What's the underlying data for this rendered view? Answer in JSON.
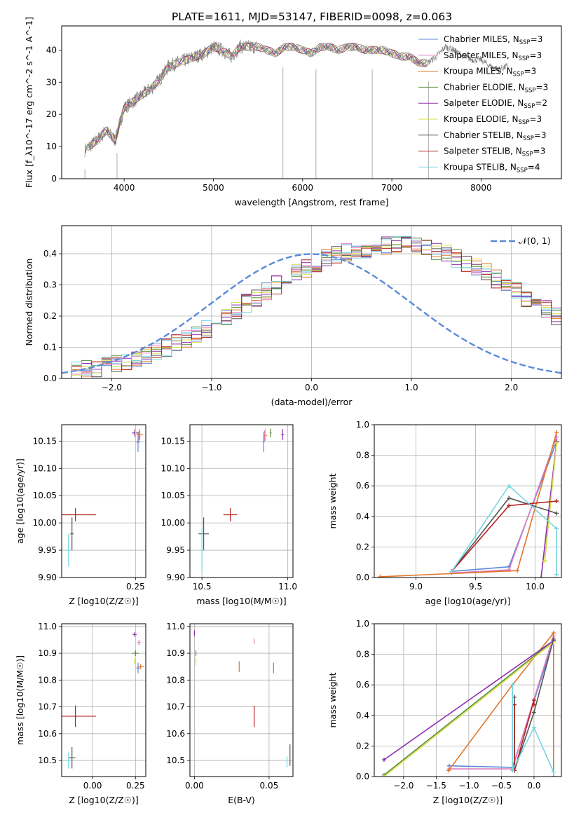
{
  "title": "PLATE=1611, MJD=53147, FIBERID=0098, z=0.063",
  "colors": {
    "Chabrier MILES": "#5b8ad8",
    "Salpeter MILES": "#e07bc0",
    "Kroupa MILES": "#e0762a",
    "Chabrier ELODIE": "#5a8a3a",
    "Salpeter ELODIE": "#8e2fb0",
    "Kroupa ELODIE": "#d9e04a",
    "Chabrier STELIB": "#555555",
    "Salpeter STELIB": "#b51f1f",
    "Kroupa STELIB": "#78d4e0",
    "data": "#808080",
    "normal": "#5b8ad8"
  },
  "chart_data": [
    {
      "type": "line",
      "id": "spectrum",
      "xlabel": "wavelength [Angstrom, rest frame]",
      "ylabel": "Flux [f_λ10^-17 erg cm^-2 s^-1 A^-1]",
      "xlim": [
        3300,
        8900
      ],
      "ylim": [
        0,
        47.5
      ],
      "xticks": [
        4000,
        5000,
        6000,
        7000,
        8000
      ],
      "yticks": [
        0,
        10,
        20,
        30,
        40
      ],
      "grid": false,
      "legend_position": "upper right",
      "legend": [
        {
          "name": "Chabrier MILES",
          "nssp": "3"
        },
        {
          "name": "Salpeter MILES",
          "nssp": "3"
        },
        {
          "name": "Kroupa MILES",
          "nssp": "3"
        },
        {
          "name": "Chabrier ELODIE",
          "nssp": "3"
        },
        {
          "name": "Salpeter ELODIE",
          "nssp": "2"
        },
        {
          "name": "Kroupa ELODIE",
          "nssp": "3"
        },
        {
          "name": "Chabrier STELIB",
          "nssp": "3"
        },
        {
          "name": "Salpeter STELIB",
          "nssp": "3"
        },
        {
          "name": "Kroupa STELIB",
          "nssp": "4"
        }
      ],
      "x": [
        3560,
        3700,
        3800,
        3900,
        4000,
        4100,
        4200,
        4300,
        4400,
        4500,
        4600,
        4700,
        4800,
        4900,
        5000,
        5100,
        5200,
        5300,
        5400,
        5500,
        5600,
        5700,
        5800,
        5900,
        6000,
        6100,
        6200,
        6300,
        6400,
        6500,
        6600,
        6700,
        6800,
        6900,
        7000,
        7100,
        7200,
        7300,
        7400,
        7500,
        7600,
        7700,
        7800,
        7900,
        8000,
        8100,
        8200,
        8300
      ],
      "y": [
        9,
        12,
        15,
        12,
        22,
        24,
        26,
        28,
        31,
        35,
        36,
        37,
        38,
        39,
        41,
        40,
        38,
        41,
        41,
        41,
        40,
        39,
        41,
        41,
        40,
        39,
        41,
        41,
        40,
        41,
        41,
        40,
        40,
        40,
        39,
        38,
        38,
        36,
        36,
        38,
        41,
        40,
        38,
        37,
        37,
        35,
        34,
        35
      ]
    },
    {
      "type": "line",
      "id": "residual-histogram",
      "xlabel": "(data-model)/error",
      "ylabel": "Normed distribution",
      "xlim": [
        -2.5,
        2.5
      ],
      "ylim": [
        0,
        0.49
      ],
      "xticks": [
        -2,
        -1,
        0,
        1,
        2
      ],
      "yticks": [
        0.0,
        0.1,
        0.2,
        0.3,
        0.4
      ],
      "grid": true,
      "legend_position": "upper right",
      "normal_label": "𝒩(0, 1)",
      "bin_width": 0.1,
      "hist_base": [
        0.02,
        0.025,
        0.03,
        0.035,
        0.04,
        0.045,
        0.055,
        0.065,
        0.075,
        0.085,
        0.1,
        0.115,
        0.13,
        0.145,
        0.16,
        0.18,
        0.2,
        0.22,
        0.24,
        0.26,
        0.28,
        0.3,
        0.32,
        0.34,
        0.355,
        0.37,
        0.385,
        0.395,
        0.405,
        0.41,
        0.415,
        0.42,
        0.425,
        0.43,
        0.43,
        0.425,
        0.42,
        0.41,
        0.4,
        0.385,
        0.37,
        0.355,
        0.34,
        0.32,
        0.3,
        0.28,
        0.26,
        0.24,
        0.22,
        0.2
      ]
    },
    {
      "type": "scatter",
      "id": "age-vs-Z",
      "xlabel": "Z [log10(Z/Z☉)]",
      "ylabel": "age [log10(age/yr)]",
      "xlim": [
        -0.18,
        0.31
      ],
      "ylim": [
        9.9,
        10.18
      ],
      "xticks": [
        0.25
      ],
      "yticks": [
        9.9,
        9.95,
        10.0,
        10.05,
        10.1,
        10.15
      ],
      "grid": true,
      "points": [
        {
          "name": "Chabrier MILES",
          "x": 0.265,
          "y": 10.148,
          "xerr": 0.01,
          "yerr": 0.018
        },
        {
          "name": "Salpeter MILES",
          "x": 0.27,
          "y": 10.158,
          "xerr": 0.01,
          "yerr": 0.01
        },
        {
          "name": "Kroupa MILES",
          "x": 0.275,
          "y": 10.162,
          "xerr": 0.02,
          "yerr": 0.01
        },
        {
          "name": "Chabrier ELODIE",
          "x": 0.25,
          "y": 10.165,
          "xerr": 0.02,
          "yerr": 0.008
        },
        {
          "name": "Salpeter ELODIE",
          "x": 0.245,
          "y": 10.165,
          "xerr": 0.012,
          "yerr": 0.006
        },
        {
          "name": "Kroupa ELODIE",
          "x": 0.25,
          "y": 10.168,
          "xerr": 0.005,
          "yerr": 0.01
        },
        {
          "name": "Chabrier STELIB",
          "x": -0.12,
          "y": 9.98,
          "xerr": 0.01,
          "yerr": 0.03
        },
        {
          "name": "Salpeter STELIB",
          "x": -0.1,
          "y": 10.015,
          "xerr": 0.12,
          "yerr": 0.012
        },
        {
          "name": "Kroupa STELIB",
          "x": -0.14,
          "y": 9.95,
          "xerr": 0.02,
          "yerr": 0.03
        }
      ]
    },
    {
      "type": "scatter",
      "id": "age-vs-mass",
      "xlabel": "mass [log10(M/M☉)]",
      "ylabel": "",
      "xlim": [
        10.43,
        11.03
      ],
      "ylim": [
        9.9,
        10.18
      ],
      "xticks": [
        10.5,
        11.0
      ],
      "yticks": [
        9.9,
        9.95,
        10.0,
        10.05,
        10.1,
        10.15
      ],
      "grid": true,
      "points": [
        {
          "name": "Chabrier MILES",
          "x": 10.86,
          "y": 10.148,
          "xerr": 0.005,
          "yerr": 0.018
        },
        {
          "name": "Salpeter MILES",
          "x": 10.865,
          "y": 10.16,
          "xerr": 0.005,
          "yerr": 0.01
        },
        {
          "name": "Kroupa MILES",
          "x": 10.87,
          "y": 10.16,
          "xerr": 0.01,
          "yerr": 0.01
        },
        {
          "name": "Chabrier ELODIE",
          "x": 10.9,
          "y": 10.165,
          "xerr": 0.005,
          "yerr": 0.008
        },
        {
          "name": "Salpeter ELODIE",
          "x": 10.97,
          "y": 10.162,
          "xerr": 0.008,
          "yerr": 0.01
        },
        {
          "name": "Kroupa ELODIE",
          "x": 10.87,
          "y": 10.162,
          "xerr": 0.005,
          "yerr": 0.012
        },
        {
          "name": "Chabrier STELIB",
          "x": 10.51,
          "y": 9.98,
          "xerr": 0.03,
          "yerr": 0.03
        },
        {
          "name": "Salpeter STELIB",
          "x": 10.665,
          "y": 10.015,
          "xerr": 0.04,
          "yerr": 0.012
        },
        {
          "name": "Kroupa STELIB",
          "x": 10.5,
          "y": 9.95,
          "xerr": 0.01,
          "yerr": 0.04
        }
      ]
    },
    {
      "type": "line",
      "id": "weight-vs-age",
      "xlabel": "age [log10(age/yr)]",
      "ylabel": "mass weight",
      "xlim": [
        8.65,
        10.22
      ],
      "ylim": [
        0,
        1
      ],
      "xticks": [
        9.0,
        9.5,
        10.0
      ],
      "yticks": [
        0.0,
        0.2,
        0.4,
        0.6,
        0.8,
        1.0
      ],
      "grid": true,
      "series": [
        {
          "name": "Chabrier MILES",
          "x": [
            9.3,
            9.78,
            10.18
          ],
          "y": [
            0.04,
            0.07,
            0.89
          ]
        },
        {
          "name": "Salpeter MILES",
          "x": [
            9.3,
            9.78,
            10.18
          ],
          "y": [
            0.03,
            0.05,
            0.92
          ]
        },
        {
          "name": "Kroupa MILES",
          "x": [
            8.7,
            9.85,
            10.18
          ],
          "y": [
            0.005,
            0.045,
            0.95
          ]
        },
        {
          "name": "Chabrier ELODIE",
          "x": [
            10.08,
            10.18
          ],
          "y": [
            0.11,
            0.89
          ]
        },
        {
          "name": "Salpeter ELODIE",
          "x": [
            10.05,
            10.18
          ],
          "y": [
            0.0,
            0.89
          ]
        },
        {
          "name": "Kroupa ELODIE",
          "x": [
            10.08,
            10.18
          ],
          "y": [
            0.11,
            0.88
          ]
        },
        {
          "name": "Chabrier STELIB",
          "x": [
            9.3,
            9.78,
            10.18
          ],
          "y": [
            0.04,
            0.52,
            0.42
          ]
        },
        {
          "name": "Salpeter STELIB",
          "x": [
            9.3,
            9.78,
            10.18
          ],
          "y": [
            0.04,
            0.47,
            0.5
          ]
        },
        {
          "name": "Kroupa STELIB",
          "x": [
            9.3,
            9.78,
            10.18,
            10.18
          ],
          "y": [
            0.04,
            0.6,
            0.32,
            0.02
          ]
        }
      ]
    },
    {
      "type": "scatter",
      "id": "mass-vs-Z",
      "xlabel": "Z [log10(Z/Z☉)]",
      "ylabel": "mass [log10(M/M☉)]",
      "xlim": [
        -0.18,
        0.31
      ],
      "ylim": [
        10.44,
        11.01
      ],
      "xticks": [
        0.0,
        0.25
      ],
      "yticks": [
        10.5,
        10.6,
        10.7,
        10.8,
        10.9,
        11.0
      ],
      "grid": true,
      "points": [
        {
          "name": "Chabrier MILES",
          "x": 0.265,
          "y": 10.845,
          "xerr": 0.01,
          "yerr": 0.02
        },
        {
          "name": "Salpeter MILES",
          "x": 0.27,
          "y": 10.94,
          "xerr": 0.01,
          "yerr": 0.01
        },
        {
          "name": "Kroupa MILES",
          "x": 0.28,
          "y": 10.85,
          "xerr": 0.02,
          "yerr": 0.01
        },
        {
          "name": "Chabrier ELODIE",
          "x": 0.25,
          "y": 10.9,
          "xerr": 0.02,
          "yerr": 0.01
        },
        {
          "name": "Salpeter ELODIE",
          "x": 0.245,
          "y": 10.97,
          "xerr": 0.012,
          "yerr": 0.008
        },
        {
          "name": "Kroupa ELODIE",
          "x": 0.245,
          "y": 10.87,
          "xerr": 0.005,
          "yerr": 0.01
        },
        {
          "name": "Chabrier STELIB",
          "x": -0.12,
          "y": 10.51,
          "xerr": 0.02,
          "yerr": 0.04
        },
        {
          "name": "Salpeter STELIB",
          "x": -0.1,
          "y": 10.665,
          "xerr": 0.12,
          "yerr": 0.04
        },
        {
          "name": "Kroupa STELIB",
          "x": -0.14,
          "y": 10.5,
          "xerr": 0.02,
          "yerr": 0.03
        }
      ]
    },
    {
      "type": "scatter",
      "id": "mass-vs-EBV",
      "xlabel": "E(B-V)",
      "ylabel": "",
      "xlim": [
        -0.003,
        0.066
      ],
      "ylim": [
        10.44,
        11.01
      ],
      "xticks": [
        0.0,
        0.05
      ],
      "yticks": [
        10.5,
        10.6,
        10.7,
        10.8,
        10.9,
        11.0
      ],
      "grid": true,
      "points": [
        {
          "name": "Chabrier MILES",
          "x": 0.053,
          "y": 10.845,
          "xerr": 0,
          "yerr": 0.02
        },
        {
          "name": "Salpeter MILES",
          "x": 0.04,
          "y": 10.945,
          "xerr": 0,
          "yerr": 0.01
        },
        {
          "name": "Kroupa MILES",
          "x": 0.03,
          "y": 10.85,
          "xerr": 0,
          "yerr": 0.02
        },
        {
          "name": "Chabrier ELODIE",
          "x": 0.001,
          "y": 10.9,
          "xerr": 0,
          "yerr": 0.01
        },
        {
          "name": "Salpeter ELODIE",
          "x": 0.0,
          "y": 10.975,
          "xerr": 0,
          "yerr": 0.01
        },
        {
          "name": "Kroupa ELODIE",
          "x": 0.001,
          "y": 10.87,
          "xerr": 0,
          "yerr": 0.015
        },
        {
          "name": "Chabrier STELIB",
          "x": 0.064,
          "y": 10.52,
          "xerr": 0,
          "yerr": 0.04
        },
        {
          "name": "Salpeter STELIB",
          "x": 0.04,
          "y": 10.665,
          "xerr": 0,
          "yerr": 0.04
        },
        {
          "name": "Kroupa STELIB",
          "x": 0.062,
          "y": 10.495,
          "xerr": 0,
          "yerr": 0.02
        }
      ]
    },
    {
      "type": "line",
      "id": "weight-vs-Z",
      "xlabel": "Z [log10(Z/Z☉)]",
      "ylabel": "mass weight",
      "xlim": [
        -2.45,
        0.42
      ],
      "ylim": [
        0,
        1
      ],
      "xticks": [
        -2.0,
        -1.5,
        -1.0,
        -0.5,
        0.0
      ],
      "yticks": [
        0.0,
        0.2,
        0.4,
        0.6,
        0.8,
        1.0
      ],
      "grid": true,
      "series": [
        {
          "name": "Chabrier MILES",
          "x": [
            -1.3,
            -0.33,
            0.3
          ],
          "y": [
            0.07,
            0.06,
            0.89
          ]
        },
        {
          "name": "Salpeter MILES",
          "x": [
            -1.3,
            -0.33,
            0.3
          ],
          "y": [
            0.05,
            0.05,
            0.92
          ]
        },
        {
          "name": "Kroupa MILES",
          "x": [
            -1.31,
            -0.33,
            0.3,
            0.3
          ],
          "y": [
            0.04,
            0.6,
            0.94,
            0.0
          ]
        },
        {
          "name": "Chabrier ELODIE",
          "x": [
            -2.3,
            0.3
          ],
          "y": [
            0.01,
            0.89
          ]
        },
        {
          "name": "Salpeter ELODIE",
          "x": [
            -2.3,
            0.3
          ],
          "y": [
            0.11,
            0.89
          ]
        },
        {
          "name": "Kroupa ELODIE",
          "x": [
            -2.3,
            0.3
          ],
          "y": [
            0.0,
            0.88
          ]
        },
        {
          "name": "Chabrier STELIB",
          "x": [
            -0.3,
            -0.3,
            0.0,
            0.3
          ],
          "y": [
            0.52,
            0.04,
            0.42,
            0.9
          ]
        },
        {
          "name": "Salpeter STELIB",
          "x": [
            -0.3,
            -0.3,
            0.0,
            0.0
          ],
          "y": [
            0.47,
            0.04,
            0.5,
            0.47
          ]
        },
        {
          "name": "Kroupa STELIB",
          "x": [
            -0.33,
            -0.33,
            0.0,
            0.3,
            0.3
          ],
          "y": [
            0.6,
            0.04,
            0.32,
            0.03,
            0.0
          ]
        }
      ]
    }
  ]
}
